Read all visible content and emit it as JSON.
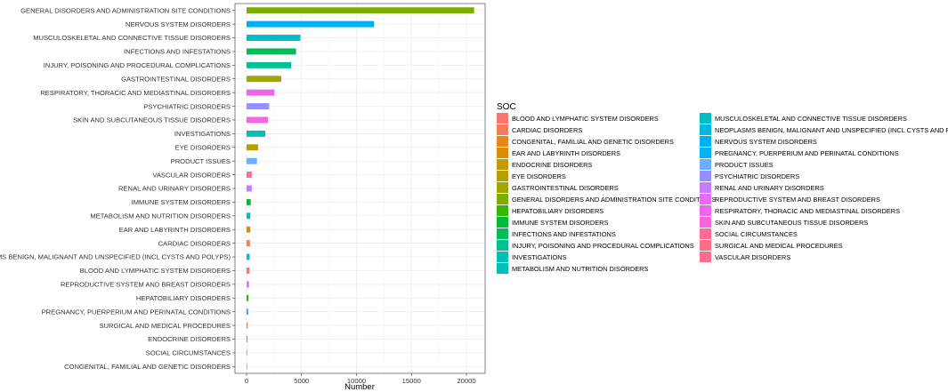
{
  "chart_data": {
    "type": "bar",
    "orientation": "horizontal",
    "title": "",
    "xlabel": "Number",
    "ylabel": "",
    "xlim": [
      -1050,
      21700
    ],
    "x_ticks": [
      0,
      5000,
      10000,
      15000,
      20000
    ],
    "grid": true,
    "legend_title": "SOC",
    "legend_position": "right",
    "categories": [
      "GENERAL DISORDERS AND ADMINISTRATION SITE CONDITIONS",
      "NERVOUS SYSTEM DISORDERS",
      "MUSCULOSKELETAL AND CONNECTIVE TISSUE DISORDERS",
      "INFECTIONS AND INFESTATIONS",
      "INJURY, POISONING AND PROCEDURAL COMPLICATIONS",
      "GASTROINTESTINAL DISORDERS",
      "RESPIRATORY, THORACIC AND MEDIASTINAL DISORDERS",
      "PSYCHIATRIC DISORDERS",
      "SKIN AND SUBCUTANEOUS TISSUE DISORDERS",
      "INVESTIGATIONS",
      "EYE DISORDERS",
      "PRODUCT ISSUES",
      "VASCULAR DISORDERS",
      "RENAL AND URINARY DISORDERS",
      "IMMUNE SYSTEM DISORDERS",
      "METABOLISM AND NUTRITION DISORDERS",
      "EAR AND LABYRINTH DISORDERS",
      "CARDIAC DISORDERS",
      "NEOPLASMS BENIGN, MALIGNANT AND UNSPECIFIED (INCL CYSTS AND POLYPS)",
      "BLOOD AND LYMPHATIC SYSTEM DISORDERS",
      "REPRODUCTIVE SYSTEM AND BREAST DISORDERS",
      "HEPATOBILIARY DISORDERS",
      "PREGNANCY, PUERPERIUM AND PERINATAL CONDITIONS",
      "SURGICAL AND MEDICAL PROCEDURES",
      "ENDOCRINE DISORDERS",
      "SOCIAL CIRCUMSTANCES",
      "CONGENITAL, FAMILIAL AND GENETIC DISORDERS"
    ],
    "values": [
      20700,
      11600,
      4900,
      4500,
      4050,
      3150,
      2550,
      2050,
      1950,
      1700,
      1050,
      950,
      480,
      480,
      380,
      340,
      340,
      310,
      280,
      280,
      220,
      170,
      140,
      110,
      90,
      60,
      40
    ],
    "colors": [
      "#7CAE00",
      "#00B0F6",
      "#00BFC4",
      "#00BC59",
      "#00C094",
      "#A3A500",
      "#F066EA",
      "#9590FF",
      "#F863DF",
      "#00C0AF",
      "#B79F00",
      "#6BB1FF",
      "#FF6C91",
      "#C77CFF",
      "#00BA38",
      "#00C0B9",
      "#D89000",
      "#F37B59",
      "#00B9E3",
      "#F8766D",
      "#E76BF3",
      "#39B600",
      "#00B4EF",
      "#FE6E8A",
      "#C49A00",
      "#FF6A98",
      "#E7861B"
    ],
    "legend": [
      {
        "label": "BLOOD AND LYMPHATIC SYSTEM DISORDERS",
        "color": "#F8766D"
      },
      {
        "label": "CARDIAC DISORDERS",
        "color": "#F37B59"
      },
      {
        "label": "CONGENITAL, FAMILIAL AND GENETIC DISORDERS",
        "color": "#E7861B"
      },
      {
        "label": "EAR AND LABYRINTH DISORDERS",
        "color": "#D89000"
      },
      {
        "label": "ENDOCRINE DISORDERS",
        "color": "#C49A00"
      },
      {
        "label": "EYE DISORDERS",
        "color": "#B79F00"
      },
      {
        "label": "GASTROINTESTINAL DISORDERS",
        "color": "#A3A500"
      },
      {
        "label": "GENERAL DISORDERS AND ADMINISTRATION SITE CONDITIONS",
        "color": "#7CAE00"
      },
      {
        "label": "HEPATOBILIARY DISORDERS",
        "color": "#39B600"
      },
      {
        "label": "IMMUNE SYSTEM DISORDERS",
        "color": "#00BA38"
      },
      {
        "label": "INFECTIONS AND INFESTATIONS",
        "color": "#00BC59"
      },
      {
        "label": "INJURY, POISONING AND PROCEDURAL COMPLICATIONS",
        "color": "#00C094"
      },
      {
        "label": "INVESTIGATIONS",
        "color": "#00C0AF"
      },
      {
        "label": "METABOLISM AND NUTRITION DISORDERS",
        "color": "#00C0B9"
      },
      {
        "label": "MUSCULOSKELETAL AND CONNECTIVE TISSUE DISORDERS",
        "color": "#00BFC4"
      },
      {
        "label": "NEOPLASMS BENIGN, MALIGNANT AND UNSPECIFIED (INCL CYSTS AND POLYPS)",
        "color": "#00B9E3"
      },
      {
        "label": "NERVOUS SYSTEM DISORDERS",
        "color": "#00B0F6"
      },
      {
        "label": "PREGNANCY, PUERPERIUM AND PERINATAL CONDITIONS",
        "color": "#00B4EF"
      },
      {
        "label": "PRODUCT ISSUES",
        "color": "#6BB1FF"
      },
      {
        "label": "PSYCHIATRIC DISORDERS",
        "color": "#9590FF"
      },
      {
        "label": "RENAL AND URINARY DISORDERS",
        "color": "#C77CFF"
      },
      {
        "label": "REPRODUCTIVE SYSTEM AND BREAST DISORDERS",
        "color": "#E76BF3"
      },
      {
        "label": "RESPIRATORY, THORACIC AND MEDIASTINAL DISORDERS",
        "color": "#F066EA"
      },
      {
        "label": "SKIN AND SUBCUTANEOUS TISSUE DISORDERS",
        "color": "#F863DF"
      },
      {
        "label": "SOCIAL CIRCUMSTANCES",
        "color": "#FF6A98"
      },
      {
        "label": "SURGICAL AND MEDICAL PROCEDURES",
        "color": "#FE6E8A"
      },
      {
        "label": "VASCULAR DISORDERS",
        "color": "#FF6C91"
      }
    ]
  }
}
